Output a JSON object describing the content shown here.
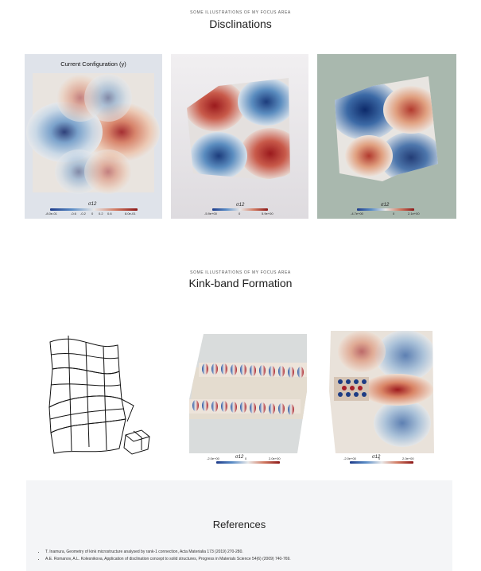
{
  "sections": [
    {
      "eyebrow": "SOME ILLUSTRATIONS OF MY FOCUS AREA",
      "title": "Disclinations"
    },
    {
      "eyebrow": "SOME ILLUSTRATIONS OF MY FOCUS AREA",
      "title": "Kink-band Formation"
    }
  ],
  "disclination_panels": [
    {
      "heading": "Current Configuration (y)",
      "colorbar_label": "σ12",
      "ticks": [
        "-8.0e-01",
        "-0.6",
        "-0.2",
        "0",
        "0.2",
        "0.6",
        "8.0e-01"
      ]
    },
    {
      "colorbar_label": "σ12",
      "ticks": [
        "-5.9e+00",
        "0",
        "5.9e+00"
      ]
    },
    {
      "colorbar_label": "σ12",
      "ticks": [
        "-4.7e+00",
        "0",
        "2.1e+00"
      ]
    }
  ],
  "kink_panels": [
    {
      "colorbar_label": "σ12",
      "ticks": [
        "-2.0e+00",
        "0",
        "2.0e+00"
      ]
    },
    {
      "colorbar_label": "σ12",
      "ticks": [
        "-2.0e+00",
        "0",
        "2.0e+00"
      ]
    }
  ],
  "references": {
    "title": "References",
    "items": [
      "T. Inamura, Geometry of kink microstructure analysed by rank-1 connection, Acta Materialia 173 (2019) 270-280.",
      "A.E. Romanov, A.L. Kolesnikova, Application of disclination concept to solid structures, Progress in Materials Science 54(6) (2009) 740-769."
    ]
  },
  "colors": {
    "red": "#b2232f",
    "blue": "#22489a",
    "neutral": "#e4e2dd"
  }
}
